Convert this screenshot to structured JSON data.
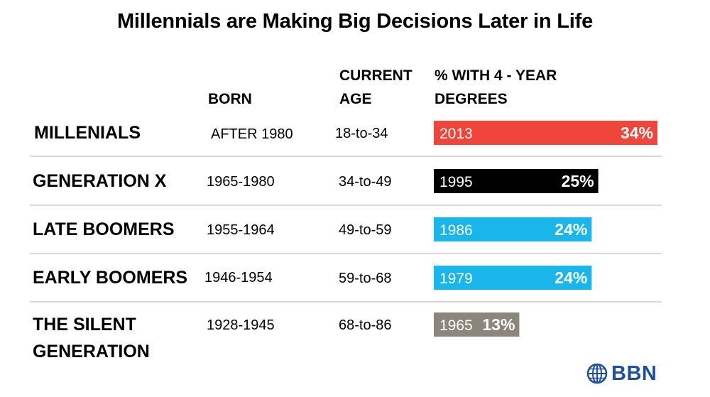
{
  "title": "Millennials are Making Big Decisions Later in Life",
  "headers": {
    "born": "BORN",
    "age_line1": "CURRENT",
    "age_line2": "AGE",
    "degrees_line1": "% WITH 4 - YEAR",
    "degrees_line2": "DEGREES"
  },
  "rows": [
    {
      "generation": "MILLENIALS",
      "generation_line2": "",
      "born": "AFTER 1980",
      "age": "18-to-34"
    },
    {
      "generation": "GENERATION X",
      "generation_line2": "",
      "born": "1965-1980",
      "age": "34-to-49"
    },
    {
      "generation": "LATE BOOMERS",
      "generation_line2": "",
      "born": "1955-1964",
      "age": "49-to-59"
    },
    {
      "generation": "EARLY BOOMERS",
      "generation_line2": "",
      "born": "1946-1954",
      "age": "59-to-68"
    },
    {
      "generation": "THE SILENT",
      "generation_line2": "GENERATION",
      "born": "1928-1945",
      "age": "68-to-86"
    }
  ],
  "chart_data": {
    "type": "bar",
    "orientation": "horizontal",
    "categories": [
      "MILLENIALS",
      "GENERATION X",
      "LATE BOOMERS",
      "EARLY BOOMERS",
      "THE SILENT GENERATION"
    ],
    "years": [
      "2013",
      "1995",
      "1986",
      "1979",
      "1965"
    ],
    "values": [
      34,
      25,
      24,
      24,
      13
    ],
    "value_labels": [
      "34%",
      "25%",
      "24%",
      "24%",
      "13%"
    ],
    "colors": [
      "#f0453a",
      "#000000",
      "#19b6eb",
      "#19b6eb",
      "#8c857b"
    ],
    "unit": "%",
    "xlim": [
      0,
      34
    ]
  },
  "logo": {
    "text": "BBN",
    "icon": "globe-icon",
    "color": "#1f4e9a"
  }
}
